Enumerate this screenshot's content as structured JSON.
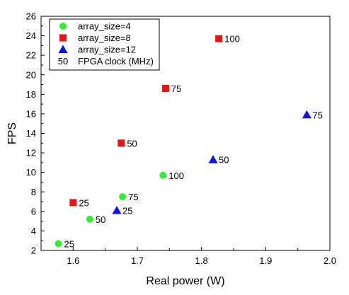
{
  "chart_data": {
    "type": "scatter",
    "title": "",
    "xlabel": "Real power (W)",
    "ylabel": "FPS",
    "xlim": [
      1.55,
      2.0
    ],
    "ylim": [
      2,
      26
    ],
    "xticks": [
      "1.6",
      "1.7",
      "1.8",
      "1.9",
      "2.0"
    ],
    "yticks": [
      "2",
      "4",
      "6",
      "8",
      "10",
      "12",
      "14",
      "16",
      "18",
      "20",
      "22",
      "24",
      "26"
    ],
    "grid": false,
    "legend_position": "top-left",
    "label_legend": "FPGA clock (MHz)",
    "label_legend_sample": "50",
    "series": [
      {
        "name": "array_size=4",
        "marker": "circle",
        "color": "#33ee33",
        "points": [
          {
            "x": 1.577,
            "y": 2.7,
            "label": "25"
          },
          {
            "x": 1.626,
            "y": 5.2,
            "label": "50"
          },
          {
            "x": 1.677,
            "y": 7.5,
            "label": "75"
          },
          {
            "x": 1.74,
            "y": 9.7,
            "label": "100"
          }
        ]
      },
      {
        "name": "array_size=8",
        "marker": "square",
        "color": "#ee1111",
        "points": [
          {
            "x": 1.6,
            "y": 6.9,
            "label": "25"
          },
          {
            "x": 1.675,
            "y": 13.0,
            "label": "50"
          },
          {
            "x": 1.744,
            "y": 18.6,
            "label": "75"
          },
          {
            "x": 1.827,
            "y": 23.7,
            "label": "100"
          }
        ]
      },
      {
        "name": "array_size=12",
        "marker": "triangle",
        "color": "#1111ee",
        "points": [
          {
            "x": 1.668,
            "y": 6.1,
            "label": "25"
          },
          {
            "x": 1.818,
            "y": 11.3,
            "label": "50"
          },
          {
            "x": 1.964,
            "y": 15.9,
            "label": "75"
          }
        ]
      }
    ]
  }
}
